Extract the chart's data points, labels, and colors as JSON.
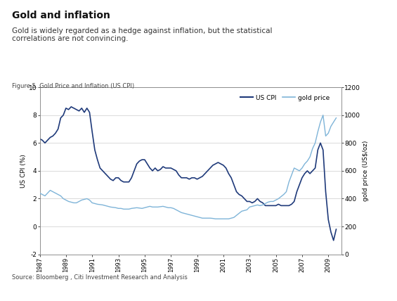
{
  "title": "Gold and inflation",
  "subtitle": "Gold is widely regarded as a hedge against inflation, but the statistical\ncorrelations are not convincing.",
  "figure_label": "Figure 5. Gold Price and Inflation (US CPI)",
  "source": "Source: Bloomberg , Citi Investment Research and Analysis",
  "ylabel_left": "US CPI (%)",
  "ylabel_right": "gold price (US$/oz)",
  "legend_cpi": "US CPI",
  "legend_gold": "gold price",
  "xlim": [
    1987,
    2010
  ],
  "ylim_left": [
    -2,
    10
  ],
  "ylim_right": [
    0,
    1200
  ],
  "yticks_left": [
    -2,
    0,
    2,
    4,
    6,
    8,
    10
  ],
  "yticks_right": [
    0,
    200,
    400,
    600,
    800,
    1000,
    1200
  ],
  "xticks": [
    1987,
    1989,
    1991,
    1993,
    1995,
    1997,
    1999,
    2001,
    2003,
    2005,
    2007,
    2009
  ],
  "color_cpi": "#1F3A7A",
  "color_gold": "#7EB4D8",
  "header_bar_color": "#1F3A7A",
  "background_color": "#FFFFFF",
  "cpi_data": [
    [
      1987.0,
      6.3
    ],
    [
      1987.2,
      6.2
    ],
    [
      1987.4,
      6.0
    ],
    [
      1987.6,
      6.2
    ],
    [
      1987.8,
      6.4
    ],
    [
      1988.0,
      6.5
    ],
    [
      1988.2,
      6.7
    ],
    [
      1988.4,
      7.0
    ],
    [
      1988.6,
      7.8
    ],
    [
      1988.8,
      8.0
    ],
    [
      1989.0,
      8.5
    ],
    [
      1989.2,
      8.4
    ],
    [
      1989.4,
      8.6
    ],
    [
      1989.6,
      8.5
    ],
    [
      1989.8,
      8.4
    ],
    [
      1990.0,
      8.3
    ],
    [
      1990.2,
      8.5
    ],
    [
      1990.4,
      8.2
    ],
    [
      1990.6,
      8.5
    ],
    [
      1990.8,
      8.2
    ],
    [
      1991.0,
      6.8
    ],
    [
      1991.2,
      5.5
    ],
    [
      1991.4,
      4.8
    ],
    [
      1991.6,
      4.2
    ],
    [
      1991.8,
      4.0
    ],
    [
      1992.0,
      3.8
    ],
    [
      1992.2,
      3.6
    ],
    [
      1992.4,
      3.4
    ],
    [
      1992.6,
      3.3
    ],
    [
      1992.8,
      3.5
    ],
    [
      1993.0,
      3.5
    ],
    [
      1993.2,
      3.3
    ],
    [
      1993.4,
      3.2
    ],
    [
      1993.6,
      3.2
    ],
    [
      1993.8,
      3.2
    ],
    [
      1994.0,
      3.5
    ],
    [
      1994.2,
      4.0
    ],
    [
      1994.4,
      4.5
    ],
    [
      1994.6,
      4.7
    ],
    [
      1994.8,
      4.8
    ],
    [
      1995.0,
      4.8
    ],
    [
      1995.2,
      4.5
    ],
    [
      1995.4,
      4.2
    ],
    [
      1995.6,
      4.0
    ],
    [
      1995.8,
      4.2
    ],
    [
      1996.0,
      4.0
    ],
    [
      1996.2,
      4.1
    ],
    [
      1996.4,
      4.3
    ],
    [
      1996.6,
      4.2
    ],
    [
      1996.8,
      4.2
    ],
    [
      1997.0,
      4.2
    ],
    [
      1997.2,
      4.1
    ],
    [
      1997.4,
      4.0
    ],
    [
      1997.6,
      3.7
    ],
    [
      1997.8,
      3.5
    ],
    [
      1998.0,
      3.5
    ],
    [
      1998.2,
      3.5
    ],
    [
      1998.4,
      3.4
    ],
    [
      1998.6,
      3.5
    ],
    [
      1998.8,
      3.5
    ],
    [
      1999.0,
      3.4
    ],
    [
      1999.2,
      3.5
    ],
    [
      1999.4,
      3.6
    ],
    [
      1999.6,
      3.8
    ],
    [
      1999.8,
      4.0
    ],
    [
      2000.0,
      4.2
    ],
    [
      2000.2,
      4.4
    ],
    [
      2000.4,
      4.5
    ],
    [
      2000.6,
      4.6
    ],
    [
      2000.8,
      4.5
    ],
    [
      2001.0,
      4.4
    ],
    [
      2001.2,
      4.2
    ],
    [
      2001.4,
      3.8
    ],
    [
      2001.6,
      3.5
    ],
    [
      2001.8,
      3.0
    ],
    [
      2002.0,
      2.5
    ],
    [
      2002.2,
      2.3
    ],
    [
      2002.4,
      2.2
    ],
    [
      2002.6,
      2.0
    ],
    [
      2002.8,
      1.8
    ],
    [
      2003.0,
      1.8
    ],
    [
      2003.2,
      1.7
    ],
    [
      2003.4,
      1.8
    ],
    [
      2003.6,
      2.0
    ],
    [
      2003.8,
      1.8
    ],
    [
      2004.0,
      1.7
    ],
    [
      2004.2,
      1.5
    ],
    [
      2004.4,
      1.5
    ],
    [
      2004.6,
      1.5
    ],
    [
      2004.8,
      1.5
    ],
    [
      2005.0,
      1.5
    ],
    [
      2005.2,
      1.6
    ],
    [
      2005.4,
      1.5
    ],
    [
      2005.6,
      1.5
    ],
    [
      2005.8,
      1.5
    ],
    [
      2006.0,
      1.5
    ],
    [
      2006.2,
      1.6
    ],
    [
      2006.4,
      1.8
    ],
    [
      2006.6,
      2.5
    ],
    [
      2006.8,
      3.0
    ],
    [
      2007.0,
      3.5
    ],
    [
      2007.2,
      3.8
    ],
    [
      2007.4,
      4.0
    ],
    [
      2007.6,
      3.8
    ],
    [
      2007.8,
      4.0
    ],
    [
      2008.0,
      4.2
    ],
    [
      2008.2,
      5.5
    ],
    [
      2008.4,
      6.0
    ],
    [
      2008.6,
      5.5
    ],
    [
      2008.8,
      2.5
    ],
    [
      2009.0,
      0.5
    ],
    [
      2009.2,
      -0.4
    ],
    [
      2009.4,
      -1.0
    ],
    [
      2009.6,
      -0.2
    ]
  ],
  "gold_data": [
    [
      1987.0,
      440
    ],
    [
      1987.2,
      430
    ],
    [
      1987.4,
      420
    ],
    [
      1987.6,
      440
    ],
    [
      1987.8,
      460
    ],
    [
      1988.0,
      450
    ],
    [
      1988.2,
      440
    ],
    [
      1988.6,
      420
    ],
    [
      1988.8,
      400
    ],
    [
      1989.0,
      390
    ],
    [
      1989.2,
      380
    ],
    [
      1989.6,
      370
    ],
    [
      1989.8,
      370
    ],
    [
      1990.0,
      380
    ],
    [
      1990.2,
      390
    ],
    [
      1990.6,
      400
    ],
    [
      1990.8,
      390
    ],
    [
      1991.0,
      370
    ],
    [
      1991.4,
      360
    ],
    [
      1991.8,
      355
    ],
    [
      1992.0,
      350
    ],
    [
      1992.4,
      340
    ],
    [
      1992.8,
      335
    ],
    [
      1993.0,
      330
    ],
    [
      1993.2,
      330
    ],
    [
      1993.4,
      325
    ],
    [
      1993.6,
      325
    ],
    [
      1993.8,
      325
    ],
    [
      1994.0,
      330
    ],
    [
      1994.4,
      335
    ],
    [
      1994.8,
      330
    ],
    [
      1995.0,
      335
    ],
    [
      1995.2,
      340
    ],
    [
      1995.4,
      345
    ],
    [
      1995.6,
      340
    ],
    [
      1995.8,
      340
    ],
    [
      1996.0,
      340
    ],
    [
      1996.4,
      345
    ],
    [
      1996.8,
      335
    ],
    [
      1997.0,
      335
    ],
    [
      1997.2,
      330
    ],
    [
      1997.4,
      320
    ],
    [
      1997.6,
      310
    ],
    [
      1997.8,
      300
    ],
    [
      1998.0,
      295
    ],
    [
      1998.2,
      290
    ],
    [
      1998.4,
      285
    ],
    [
      1998.6,
      280
    ],
    [
      1998.8,
      275
    ],
    [
      1999.0,
      270
    ],
    [
      1999.2,
      265
    ],
    [
      1999.4,
      260
    ],
    [
      1999.6,
      260
    ],
    [
      1999.8,
      260
    ],
    [
      2000.0,
      260
    ],
    [
      2000.2,
      258
    ],
    [
      2000.4,
      255
    ],
    [
      2000.6,
      255
    ],
    [
      2000.8,
      255
    ],
    [
      2001.0,
      255
    ],
    [
      2001.2,
      255
    ],
    [
      2001.4,
      255
    ],
    [
      2001.6,
      260
    ],
    [
      2001.8,
      265
    ],
    [
      2002.0,
      280
    ],
    [
      2002.2,
      295
    ],
    [
      2002.4,
      310
    ],
    [
      2002.6,
      315
    ],
    [
      2002.8,
      320
    ],
    [
      2003.0,
      340
    ],
    [
      2003.2,
      345
    ],
    [
      2003.4,
      350
    ],
    [
      2003.6,
      355
    ],
    [
      2003.8,
      350
    ],
    [
      2004.0,
      355
    ],
    [
      2004.2,
      365
    ],
    [
      2004.4,
      375
    ],
    [
      2004.6,
      380
    ],
    [
      2004.8,
      380
    ],
    [
      2005.0,
      390
    ],
    [
      2005.2,
      400
    ],
    [
      2005.4,
      415
    ],
    [
      2005.6,
      430
    ],
    [
      2005.8,
      450
    ],
    [
      2006.0,
      520
    ],
    [
      2006.2,
      570
    ],
    [
      2006.4,
      620
    ],
    [
      2006.6,
      610
    ],
    [
      2006.8,
      600
    ],
    [
      2007.0,
      620
    ],
    [
      2007.2,
      650
    ],
    [
      2007.4,
      670
    ],
    [
      2007.6,
      700
    ],
    [
      2007.8,
      760
    ],
    [
      2008.0,
      800
    ],
    [
      2008.2,
      880
    ],
    [
      2008.4,
      950
    ],
    [
      2008.6,
      1000
    ],
    [
      2008.8,
      850
    ],
    [
      2009.0,
      870
    ],
    [
      2009.2,
      920
    ],
    [
      2009.4,
      950
    ],
    [
      2009.6,
      980
    ]
  ]
}
